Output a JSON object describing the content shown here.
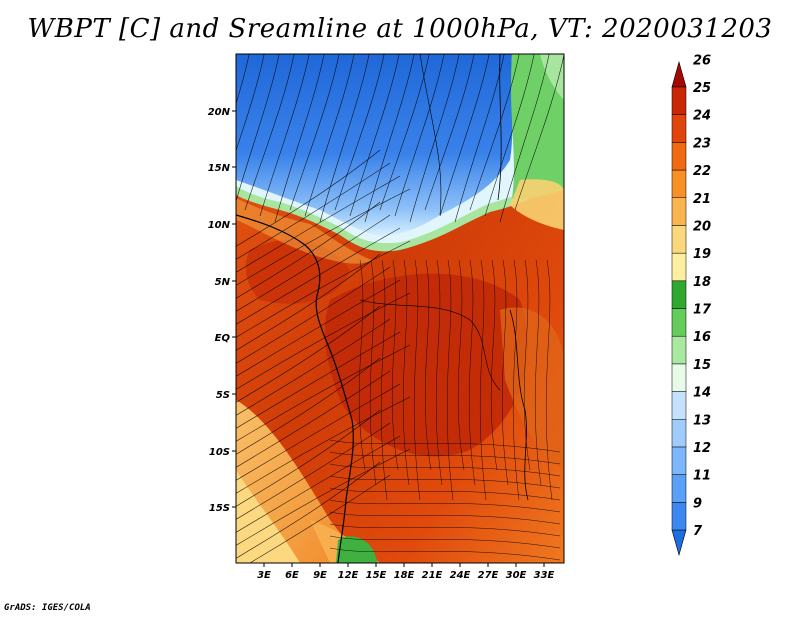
{
  "title": "WBPT [C] and Sreamline at 1000hPa, VT: 2020031203",
  "footer": "GrADS: IGES/COLA",
  "map": {
    "lat_labels": [
      "20N",
      "15N",
      "10N",
      "5N",
      "EQ",
      "5S",
      "10S",
      "15S"
    ],
    "lon_labels": [
      "3E",
      "6E",
      "9E",
      "12E",
      "15E",
      "18E",
      "21E",
      "24E",
      "27E",
      "30E",
      "33E"
    ]
  },
  "colorbar": {
    "levels": [
      "7",
      "9",
      "11",
      "12",
      "13",
      "14",
      "15",
      "16",
      "17",
      "18",
      "19",
      "20",
      "21",
      "22",
      "23",
      "24",
      "25",
      "26"
    ],
    "colors": [
      "#1e6ee0",
      "#3c87f0",
      "#5aa0f5",
      "#7db6fa",
      "#a0ccfc",
      "#c4e2fe",
      "#e8fbe8",
      "#a8e8a0",
      "#64cc5a",
      "#30a830",
      "#fcf0a0",
      "#fcd87c",
      "#fab450",
      "#f89028",
      "#f06a14",
      "#e0460c",
      "#c82806",
      "#a40a04"
    ]
  }
}
